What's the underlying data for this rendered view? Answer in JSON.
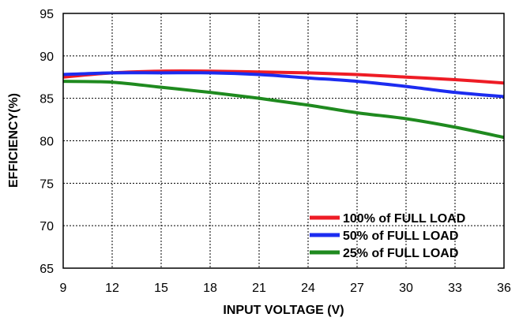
{
  "chart_data": {
    "type": "line",
    "title": "",
    "xlabel": "INPUT VOLTAGE (V)",
    "ylabel": "EFFICIENCY(%)",
    "xlim": [
      9,
      36
    ],
    "ylim": [
      65,
      95
    ],
    "x_ticks": [
      9,
      12,
      15,
      18,
      21,
      24,
      27,
      30,
      33,
      36
    ],
    "y_ticks": [
      65,
      70,
      75,
      80,
      85,
      90,
      95
    ],
    "grid": "dotted",
    "legend_position": "bottom-right",
    "x": [
      9,
      12,
      15,
      18,
      21,
      24,
      27,
      30,
      33,
      36
    ],
    "series": [
      {
        "name": "100% of FULL LOAD",
        "color": "#ee1c25",
        "values": [
          87.5,
          88.0,
          88.2,
          88.2,
          88.1,
          88.0,
          87.8,
          87.5,
          87.2,
          86.8
        ]
      },
      {
        "name": "50% of FULL LOAD",
        "color": "#1c2cf0",
        "values": [
          87.8,
          88.0,
          88.0,
          88.0,
          87.8,
          87.4,
          87.0,
          86.4,
          85.7,
          85.2
        ]
      },
      {
        "name": "25% of FULL LOAD",
        "color": "#1f8a1f",
        "values": [
          87.0,
          86.9,
          86.3,
          85.7,
          85.0,
          84.2,
          83.3,
          82.6,
          81.6,
          80.4
        ]
      }
    ]
  }
}
